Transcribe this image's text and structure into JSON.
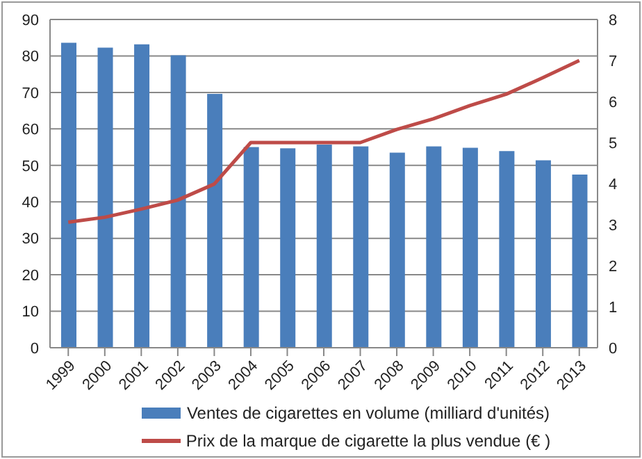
{
  "chart_data": {
    "type": "bar",
    "categories": [
      "1999",
      "2000",
      "2001",
      "2002",
      "2003",
      "2004",
      "2005",
      "2006",
      "2007",
      "2008",
      "2009",
      "2010",
      "2011",
      "2012",
      "2013"
    ],
    "series": [
      {
        "name": "Ventes de cigarettes en volume (milliard d'unités)",
        "color": "#4a7ebb",
        "values": [
          83.6,
          82.3,
          83.2,
          80.2,
          69.6,
          55,
          54.7,
          55.7,
          55.2,
          53.5,
          55.2,
          54.8,
          53.9,
          51.4,
          47.5
        ]
      },
      {
        "name": "Prix  de la marque de cigarette  la plus vendue (€ )",
        "type": "line",
        "axis": "y2",
        "color": "#be4b48",
        "values": [
          3.06,
          3.18,
          3.38,
          3.6,
          3.99,
          5,
          5,
          5,
          5,
          5.32,
          5.58,
          5.9,
          6.18,
          6.58,
          7
        ]
      }
    ],
    "ylim": [
      0,
      90
    ],
    "yticks": [
      0,
      10,
      20,
      30,
      40,
      50,
      60,
      70,
      80,
      90
    ],
    "y2lim": [
      0,
      8
    ],
    "y2ticks": [
      0,
      1,
      2,
      3,
      4,
      5,
      6,
      7,
      8
    ],
    "grid": "y",
    "legend": "bottom",
    "marker": "none"
  }
}
